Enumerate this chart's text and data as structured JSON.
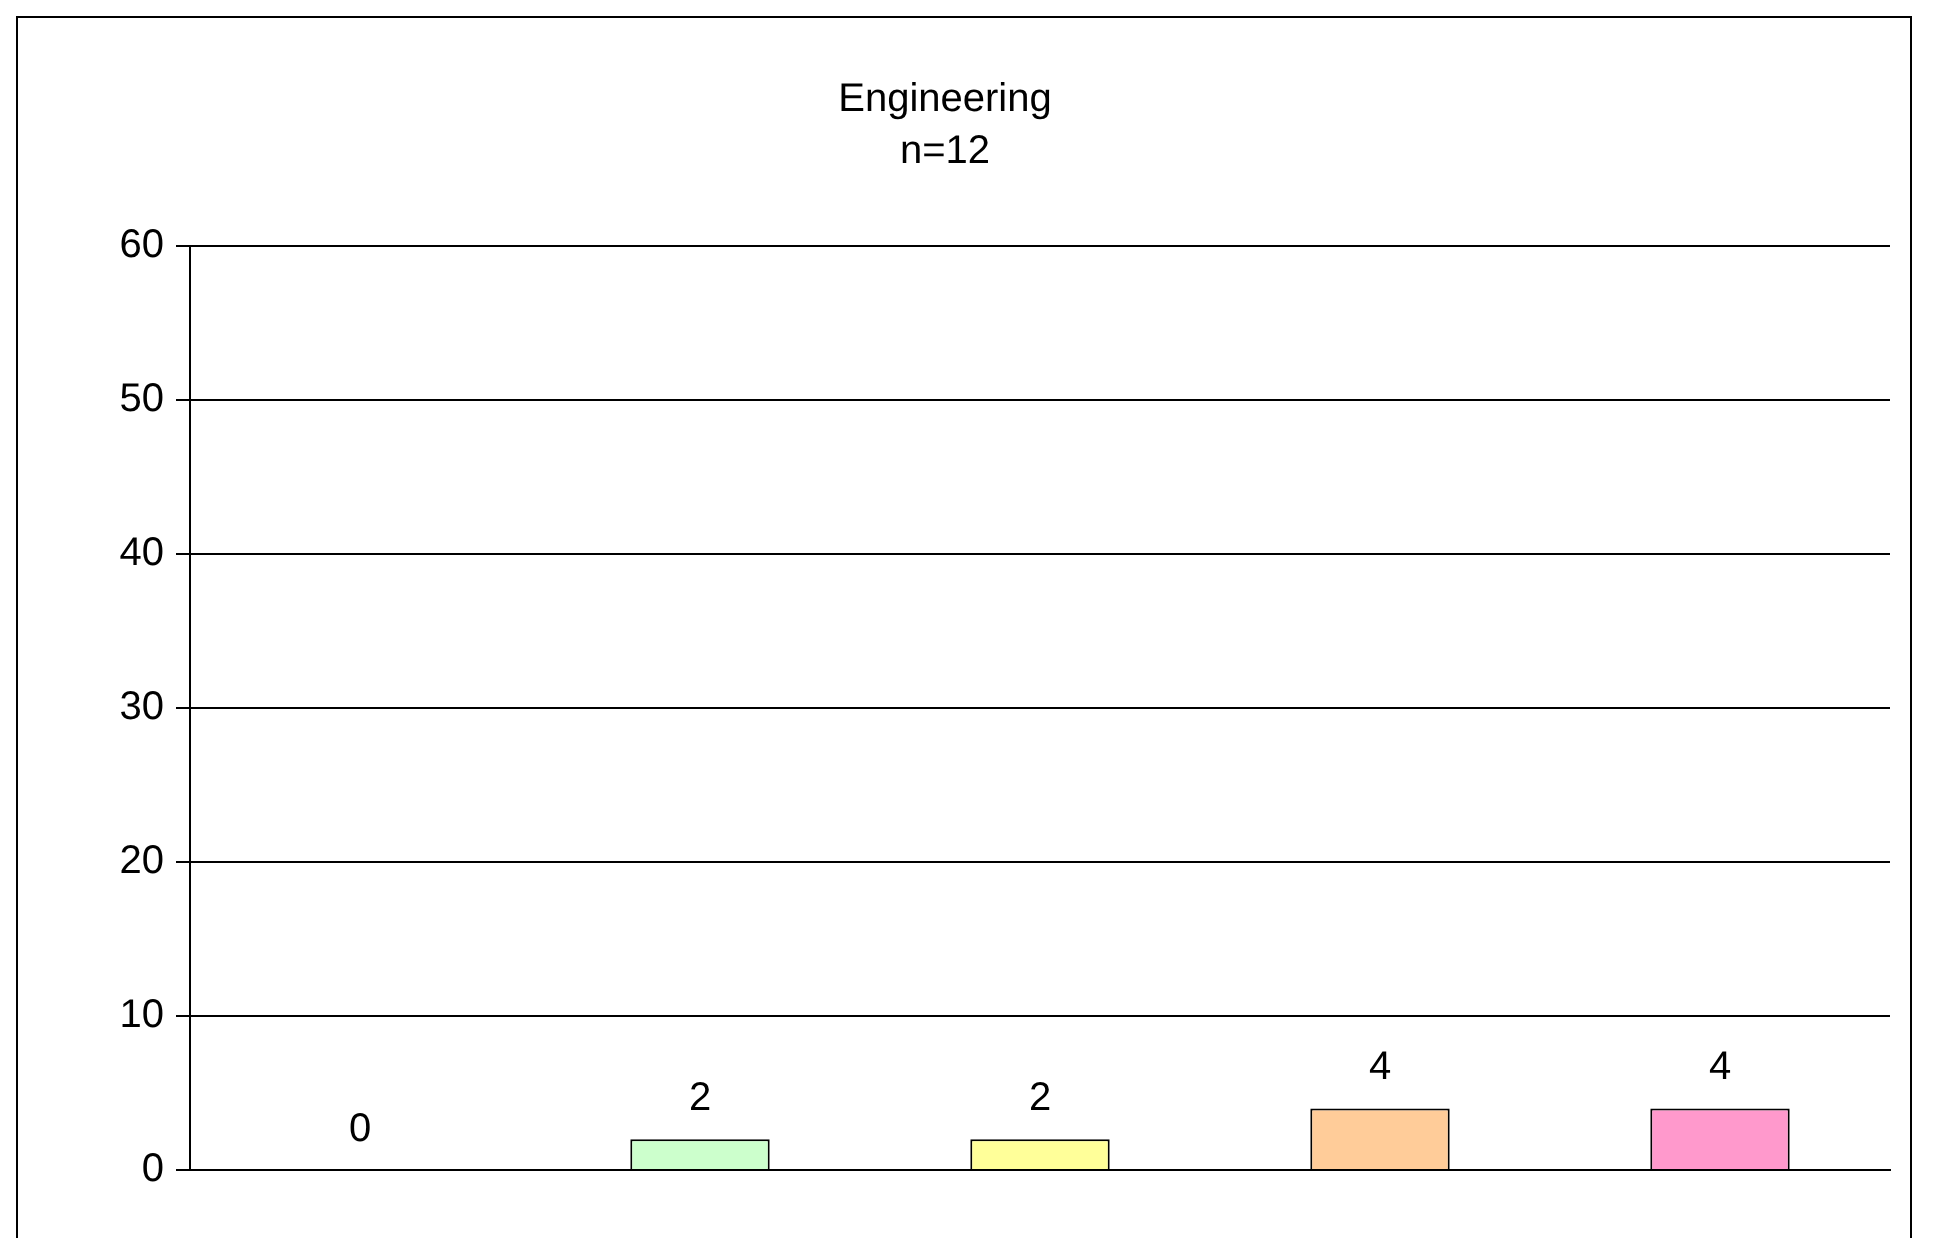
{
  "chart_data": {
    "type": "bar",
    "title": "Engineering",
    "subtitle": "n=12",
    "categories": [
      null,
      null,
      null,
      null,
      null
    ],
    "values": [
      0,
      2,
      2,
      4,
      4
    ],
    "colors": [
      "#99ccff",
      "#ccffcc",
      "#ffff99",
      "#ffcc99",
      "#ff99cc"
    ],
    "ylim": [
      0,
      60
    ],
    "yticks": [
      0,
      10,
      20,
      30,
      40,
      50,
      60
    ],
    "grid": "y",
    "legend": false,
    "data_labels": true
  }
}
